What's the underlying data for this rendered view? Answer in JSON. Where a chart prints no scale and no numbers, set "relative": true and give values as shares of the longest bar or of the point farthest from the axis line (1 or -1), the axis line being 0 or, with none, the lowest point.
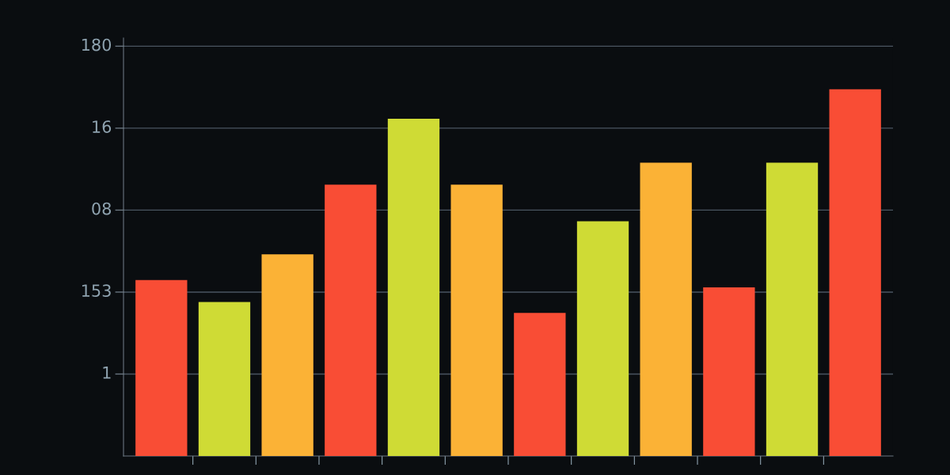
{
  "chart_data": {
    "type": "bar",
    "relative": true,
    "categories": [
      null,
      null,
      null,
      null,
      null,
      null,
      null,
      null,
      null,
      null,
      null,
      null
    ],
    "values": [
      0.48,
      0.42,
      0.55,
      0.74,
      0.92,
      0.74,
      0.39,
      0.64,
      0.8,
      0.46,
      0.8,
      1
    ],
    "colors": [
      "#f94d35",
      "#cfdb35",
      "#fbb236",
      "#f94d35",
      "#cfdb35",
      "#fbb236",
      "#f94d35",
      "#cfdb35",
      "#fbb236",
      "#f94d35",
      "#cfdb35",
      "#f94d35"
    ],
    "annotations": [
      "180",
      "16",
      "08",
      "153",
      "1"
    ],
    "grid": "y"
  }
}
